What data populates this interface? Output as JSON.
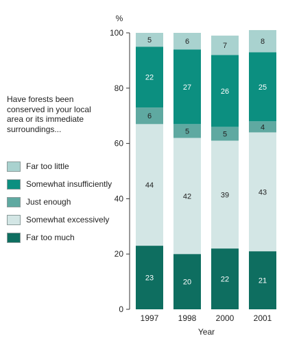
{
  "chart_data": {
    "type": "bar",
    "stacked": true,
    "title": "",
    "unit_label": "%",
    "xlabel": "Year",
    "ylabel": "",
    "ylim": [
      0,
      100
    ],
    "yticks": [
      0,
      20,
      40,
      60,
      80,
      100
    ],
    "categories": [
      "1997",
      "1998",
      "2000",
      "2001"
    ],
    "series": [
      {
        "name": "Far too much",
        "values": [
          23,
          20,
          22,
          21
        ],
        "color": "#0e6e60",
        "label_color": "#ffffff"
      },
      {
        "name": "Somewhat excessively",
        "values": [
          44,
          42,
          39,
          43
        ],
        "color": "#d3e6e5",
        "label_color": "#222222"
      },
      {
        "name": "Just enough",
        "values": [
          6,
          5,
          5,
          4
        ],
        "color": "#5fa9a1",
        "label_color": "#222222"
      },
      {
        "name": "Somewhat insufficiently",
        "values": [
          22,
          27,
          26,
          25
        ],
        "color": "#0c8f80",
        "label_color": "#ffffff"
      },
      {
        "name": "Far too little",
        "values": [
          5,
          6,
          7,
          8
        ],
        "color": "#a9d2cf",
        "label_color": "#222222"
      }
    ],
    "legend_order": [
      "Far too little",
      "Somewhat insufficiently",
      "Just enough",
      "Somewhat excessively",
      "Far too much"
    ],
    "legend_question": "Have forests been conserved in your local area or its immediate surroundings...",
    "grid": false,
    "legend_position": "left"
  }
}
